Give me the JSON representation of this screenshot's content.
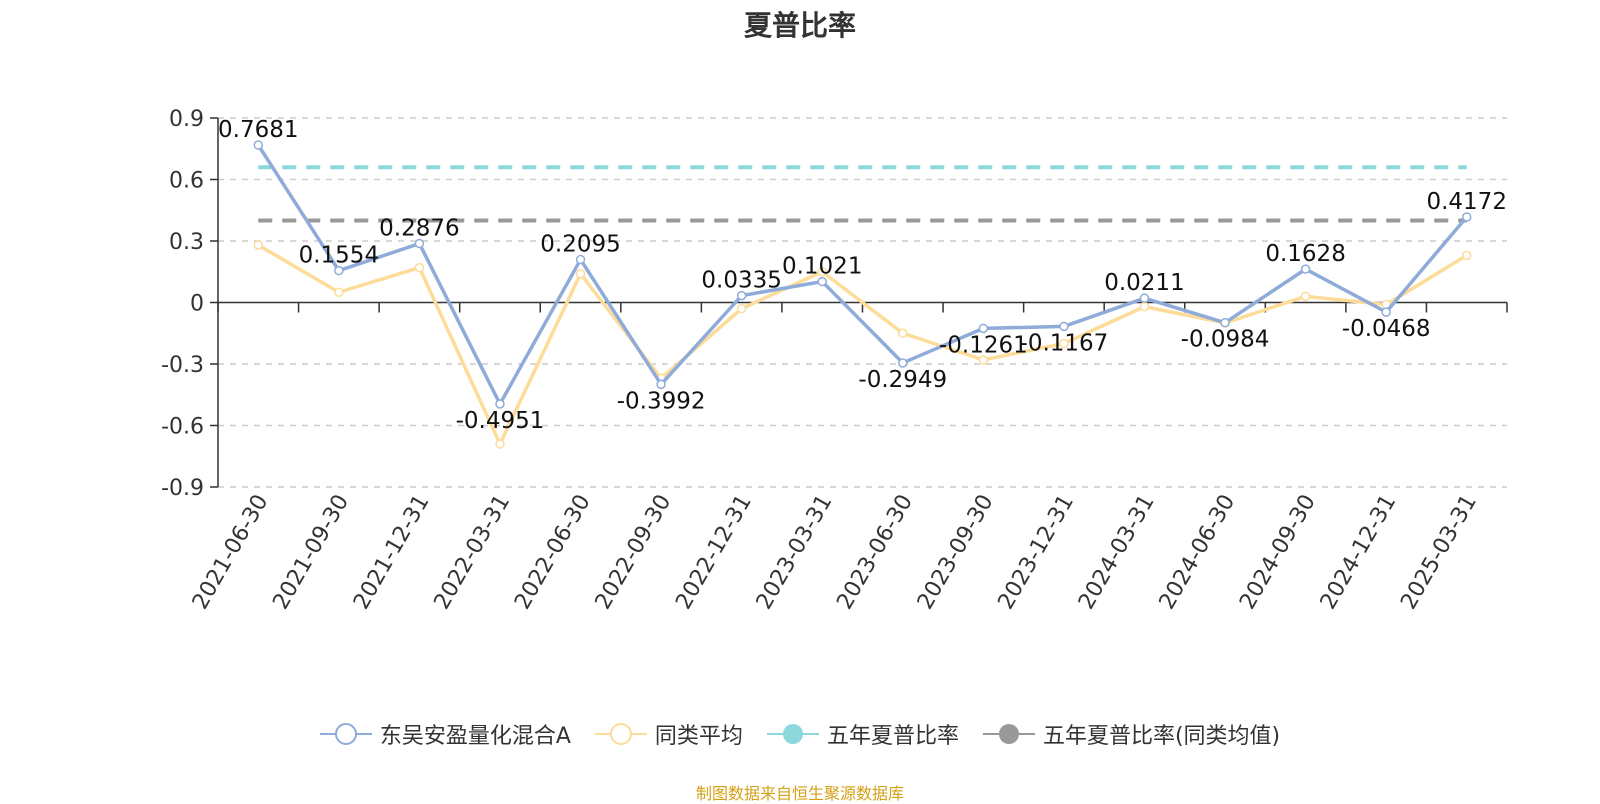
{
  "chart_data": {
    "type": "line",
    "title": "夏普比率",
    "categories": [
      "2021-06-30",
      "2021-09-30",
      "2021-12-31",
      "2022-03-31",
      "2022-06-30",
      "2022-09-30",
      "2022-12-31",
      "2023-03-31",
      "2023-06-30",
      "2023-09-30",
      "2023-12-31",
      "2024-03-31",
      "2024-06-30",
      "2024-09-30",
      "2024-12-31",
      "2025-03-31"
    ],
    "ylim": [
      -0.9,
      0.9
    ],
    "yticks": [
      "0.9",
      "0.6",
      "0.3",
      "0",
      "-0.3",
      "-0.6",
      "-0.9"
    ],
    "grid": true,
    "legend_position": "bottom",
    "series": [
      {
        "name": "东吴安盈量化混合A",
        "color": "#8eabd9",
        "labels": true,
        "values": [
          0.7681,
          0.1554,
          0.2876,
          -0.4951,
          0.2095,
          -0.3992,
          0.0335,
          0.1021,
          -0.2949,
          -0.1261,
          -0.1167,
          0.0211,
          -0.0984,
          0.1628,
          -0.0468,
          0.4172
        ],
        "value_labels": [
          "0.7681",
          "0.1554",
          "0.2876",
          "-0.4951",
          "0.2095",
          "-0.3992",
          "0.0335",
          "0.1021",
          "-0.2949",
          "-0.1261",
          "-0.1167",
          "0.0211",
          "-0.0984",
          "0.1628",
          "-0.0468",
          "0.4172"
        ]
      },
      {
        "name": "同类平均",
        "color": "#fddc9a",
        "labels": false,
        "values": [
          0.28,
          0.05,
          0.17,
          -0.69,
          0.14,
          -0.37,
          -0.03,
          0.15,
          -0.15,
          -0.28,
          -0.2,
          -0.02,
          -0.1,
          0.03,
          -0.01,
          0.23
        ]
      },
      {
        "name": "五年夏普比率",
        "color": "#8cd8dc",
        "type": "hline",
        "value": 0.66
      },
      {
        "name": "五年夏普比率(同类均值)",
        "color": "#999999",
        "type": "hline",
        "value": 0.4
      }
    ]
  },
  "footer": {
    "source": "制图数据来自恒生聚源数据库"
  }
}
